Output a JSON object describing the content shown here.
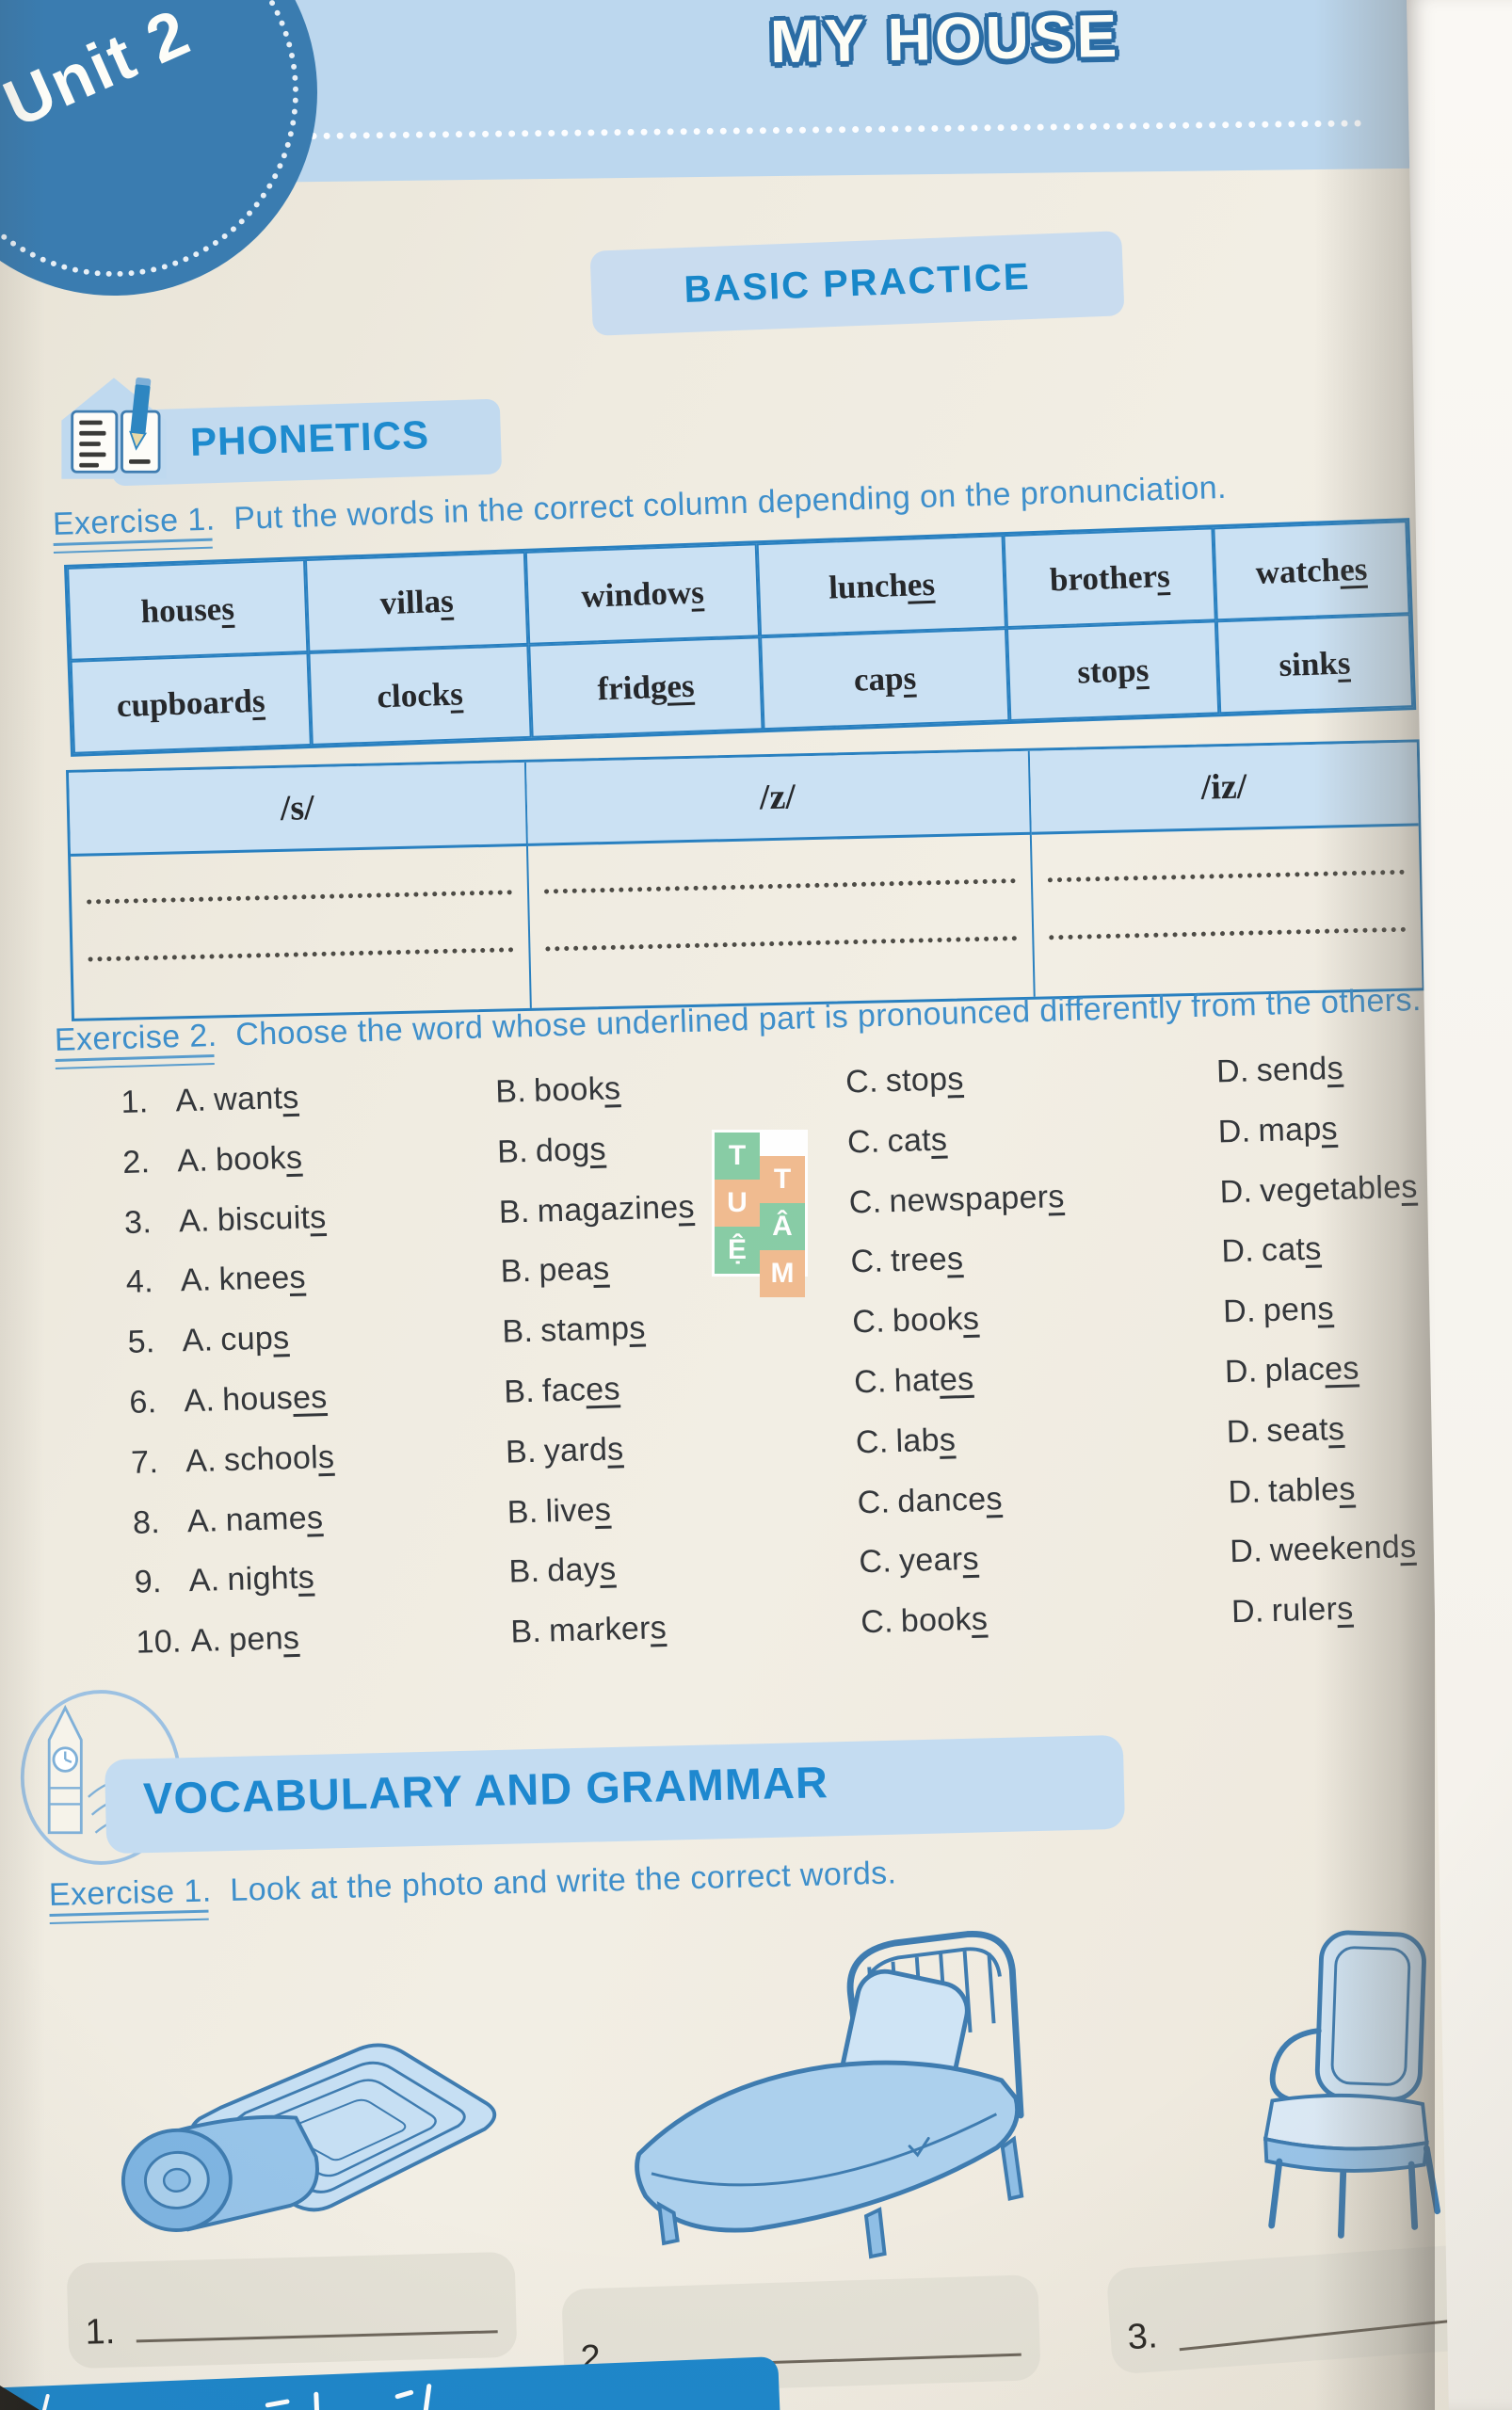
{
  "unit_badge": {
    "label": "Unit 2"
  },
  "header": {
    "title": "MY HOUSE",
    "banner": "BASIC PRACTICE"
  },
  "phonetics": {
    "heading": "PHONETICS",
    "exercise1": {
      "label": "Exercise 1.",
      "instruction": "Put the words in the correct column depending on the pronunciation.",
      "word_rows": [
        [
          {
            "stem": "house",
            "suffix": "s"
          },
          {
            "stem": "villa",
            "suffix": "s"
          },
          {
            "stem": "window",
            "suffix": "s"
          },
          {
            "stem": "lunch",
            "suffix": "es"
          },
          {
            "stem": "brother",
            "suffix": "s"
          },
          {
            "stem": "watch",
            "suffix": "es"
          }
        ],
        [
          {
            "stem": "cupboard",
            "suffix": "s"
          },
          {
            "stem": "clock",
            "suffix": "s"
          },
          {
            "stem": "fridg",
            "suffix": "es"
          },
          {
            "stem": "cap",
            "suffix": "s"
          },
          {
            "stem": "stop",
            "suffix": "s"
          },
          {
            "stem": "sink",
            "suffix": "s"
          }
        ]
      ],
      "sound_headers": [
        "/s/",
        "/z/",
        "/iz/"
      ],
      "answer_lines_per_column": 2
    },
    "exercise2": {
      "label": "Exercise 2.",
      "instruction": "Choose the word whose underlined part is pronounced differently from the others.",
      "questions": [
        {
          "num": "1.",
          "options": [
            {
              "letter": "A.",
              "stem": "want",
              "suffix": "s"
            },
            {
              "letter": "B.",
              "stem": "book",
              "suffix": "s"
            },
            {
              "letter": "C.",
              "stem": "stop",
              "suffix": "s"
            },
            {
              "letter": "D.",
              "stem": "send",
              "suffix": "s"
            }
          ]
        },
        {
          "num": "2.",
          "options": [
            {
              "letter": "A.",
              "stem": "book",
              "suffix": "s"
            },
            {
              "letter": "B.",
              "stem": "dog",
              "suffix": "s"
            },
            {
              "letter": "C.",
              "stem": "cat",
              "suffix": "s"
            },
            {
              "letter": "D.",
              "stem": "map",
              "suffix": "s"
            }
          ]
        },
        {
          "num": "3.",
          "options": [
            {
              "letter": "A.",
              "stem": "biscuit",
              "suffix": "s"
            },
            {
              "letter": "B.",
              "stem": "magazine",
              "suffix": "s"
            },
            {
              "letter": "C.",
              "stem": "newspaper",
              "suffix": "s"
            },
            {
              "letter": "D.",
              "stem": "vegetable",
              "suffix": "s"
            }
          ]
        },
        {
          "num": "4.",
          "options": [
            {
              "letter": "A.",
              "stem": "knee",
              "suffix": "s"
            },
            {
              "letter": "B.",
              "stem": "pea",
              "suffix": "s"
            },
            {
              "letter": "C.",
              "stem": "tree",
              "suffix": "s"
            },
            {
              "letter": "D.",
              "stem": "cat",
              "suffix": "s"
            }
          ]
        },
        {
          "num": "5.",
          "options": [
            {
              "letter": "A.",
              "stem": "cup",
              "suffix": "s"
            },
            {
              "letter": "B.",
              "stem": "stamp",
              "suffix": "s"
            },
            {
              "letter": "C.",
              "stem": "book",
              "suffix": "s"
            },
            {
              "letter": "D.",
              "stem": "pen",
              "suffix": "s"
            }
          ]
        },
        {
          "num": "6.",
          "options": [
            {
              "letter": "A.",
              "stem": "hous",
              "suffix": "es"
            },
            {
              "letter": "B.",
              "stem": "fac",
              "suffix": "es"
            },
            {
              "letter": "C.",
              "stem": "hat",
              "suffix": "es"
            },
            {
              "letter": "D.",
              "stem": "plac",
              "suffix": "es"
            }
          ]
        },
        {
          "num": "7.",
          "options": [
            {
              "letter": "A.",
              "stem": "school",
              "suffix": "s"
            },
            {
              "letter": "B.",
              "stem": "yard",
              "suffix": "s"
            },
            {
              "letter": "C.",
              "stem": "lab",
              "suffix": "s"
            },
            {
              "letter": "D.",
              "stem": "seat",
              "suffix": "s"
            }
          ]
        },
        {
          "num": "8.",
          "options": [
            {
              "letter": "A.",
              "stem": "name",
              "suffix": "s"
            },
            {
              "letter": "B.",
              "stem": "live",
              "suffix": "s"
            },
            {
              "letter": "C.",
              "stem": "dance",
              "suffix": "s"
            },
            {
              "letter": "D.",
              "stem": "table",
              "suffix": "s"
            }
          ]
        },
        {
          "num": "9.",
          "options": [
            {
              "letter": "A.",
              "stem": "night",
              "suffix": "s"
            },
            {
              "letter": "B.",
              "stem": "day",
              "suffix": "s"
            },
            {
              "letter": "C.",
              "stem": "year",
              "suffix": "s"
            },
            {
              "letter": "D.",
              "stem": "weekend",
              "suffix": "s"
            }
          ]
        },
        {
          "num": "10.",
          "options": [
            {
              "letter": "A.",
              "stem": "pen",
              "suffix": "s"
            },
            {
              "letter": "B.",
              "stem": "marker",
              "suffix": "s"
            },
            {
              "letter": "C.",
              "stem": "book",
              "suffix": "s"
            },
            {
              "letter": "D.",
              "stem": "ruler",
              "suffix": "s"
            }
          ]
        }
      ]
    }
  },
  "vocabulary": {
    "heading": "VOCABULARY AND GRAMMAR",
    "exercise1": {
      "label": "Exercise 1.",
      "instruction": "Look at the photo and write the correct words."
    },
    "illustrations": [
      "rolled-blanket",
      "bed",
      "chair"
    ],
    "answer_blanks": [
      {
        "num": "1."
      },
      {
        "num": "2."
      },
      {
        "num": "3."
      }
    ]
  },
  "watermark": {
    "text": "TUỆ TÂM",
    "blocks": [
      {
        "ch": "T",
        "color": "green"
      },
      {
        "ch": "U",
        "color": "peach"
      },
      {
        "ch": "Ệ",
        "color": "green"
      },
      {
        "ch": "T",
        "color": "peach"
      },
      {
        "ch": "Â",
        "color": "green"
      },
      {
        "ch": "M",
        "color": "peach"
      }
    ]
  },
  "colors": {
    "band_blue": "#BCD7EE",
    "badge_blue": "#3A7CB0",
    "accent_blue": "#1E88CF",
    "table_border": "#2980C0",
    "cell_blue": "#CBE1F3",
    "exercise_blue": "#3E8FCB",
    "ink": "#34373B",
    "watermark_green": "#85CBA4",
    "watermark_peach": "#F0BA8E",
    "bottom_bar": "#1E87CB"
  }
}
